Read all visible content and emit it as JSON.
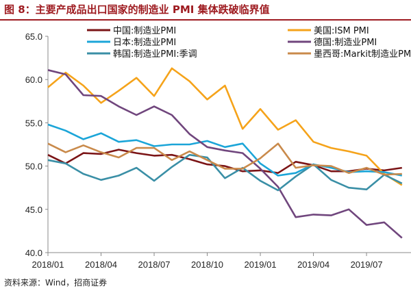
{
  "figure_title": "图 8：主要产成品出口国家的制造业 PMI 集体跌破临界值",
  "source": "资料来源：Wind，招商证券",
  "chart_data": {
    "type": "line",
    "title": "",
    "xlabel": "",
    "ylabel": "",
    "ylim": [
      40.0,
      65.0
    ],
    "yticks": [
      "40.0",
      "45.0",
      "50.0",
      "55.0",
      "60.0",
      "65.0"
    ],
    "x": [
      "2018/01",
      "2018/02",
      "2018/03",
      "2018/04",
      "2018/05",
      "2018/06",
      "2018/07",
      "2018/08",
      "2018/09",
      "2018/10",
      "2018/11",
      "2018/12",
      "2019/01",
      "2019/02",
      "2019/03",
      "2019/04",
      "2019/05",
      "2019/06",
      "2019/07",
      "2019/08",
      "2019/09"
    ],
    "xticks": [
      "2018/01",
      "2018/04",
      "2018/07",
      "2018/10",
      "2019/01",
      "2019/04",
      "2019/07"
    ],
    "grid": false,
    "legend": "top",
    "series": [
      {
        "name": "中国:制造业PMI",
        "color": "#7b1416",
        "values": [
          51.3,
          50.3,
          51.5,
          51.4,
          51.9,
          51.5,
          51.2,
          51.3,
          50.8,
          50.2,
          50.0,
          49.4,
          49.5,
          49.2,
          50.5,
          50.1,
          49.4,
          49.4,
          49.7,
          49.5,
          49.8
        ]
      },
      {
        "name": "美国:ISM PMI",
        "color": "#f5a31a",
        "values": [
          59.1,
          60.8,
          59.3,
          57.3,
          58.7,
          60.2,
          58.1,
          61.3,
          59.8,
          57.7,
          59.3,
          54.3,
          56.6,
          54.2,
          55.3,
          52.8,
          52.1,
          51.7,
          51.2,
          49.1,
          47.8
        ]
      },
      {
        "name": "日本:制造业PMI",
        "color": "#1ba5d8",
        "values": [
          54.8,
          54.1,
          53.1,
          53.8,
          52.8,
          53.0,
          52.3,
          52.5,
          52.5,
          52.9,
          52.2,
          52.6,
          50.3,
          48.9,
          49.2,
          50.2,
          49.8,
          49.3,
          49.4,
          49.3,
          48.9
        ]
      },
      {
        "name": "德国:制造业PMI",
        "color": "#70467d",
        "values": [
          61.1,
          60.6,
          58.2,
          58.1,
          56.9,
          55.9,
          56.9,
          55.9,
          53.7,
          52.2,
          51.8,
          51.5,
          49.7,
          47.6,
          44.1,
          44.4,
          44.3,
          45.0,
          43.2,
          43.5,
          41.7
        ]
      },
      {
        "name": "韩国:制造业PMI:季调",
        "color": "#3a8fa6",
        "values": [
          50.7,
          50.3,
          49.1,
          48.4,
          48.9,
          49.8,
          48.3,
          49.9,
          51.3,
          51.0,
          48.6,
          49.8,
          48.3,
          47.2,
          48.8,
          50.2,
          48.4,
          47.5,
          47.3,
          49.0,
          48.0
        ]
      },
      {
        "name": "墨西哥:Markit制造业PMI",
        "color": "#c98a4b",
        "values": [
          52.6,
          51.6,
          52.4,
          51.6,
          51.0,
          52.1,
          52.1,
          50.7,
          51.7,
          50.7,
          49.7,
          49.7,
          50.9,
          52.6,
          49.8,
          50.1,
          50.0,
          49.2,
          49.8,
          49.0,
          49.1
        ]
      }
    ]
  }
}
